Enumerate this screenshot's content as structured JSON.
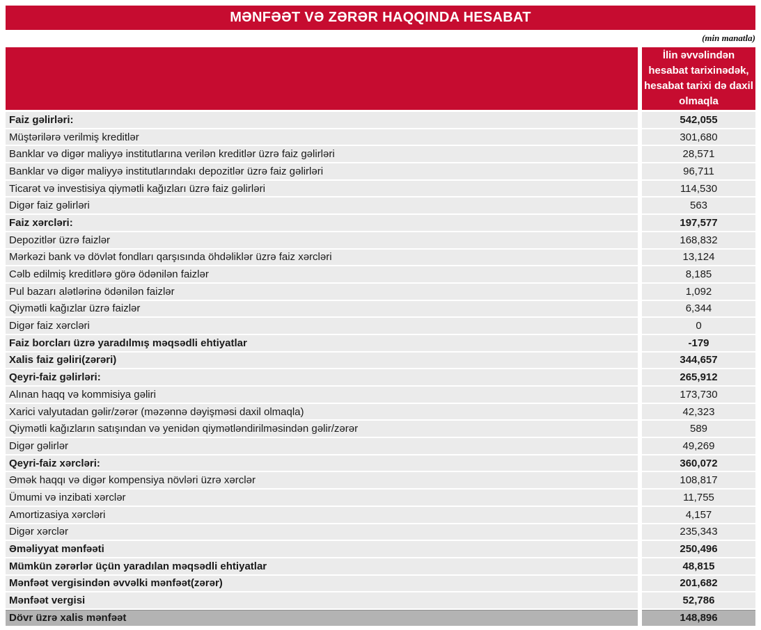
{
  "report": {
    "title": "MƏNFƏƏT VƏ ZƏRƏR HAQQINDA HESABAT",
    "unit_note": "(min manatla)",
    "value_column_header": "İlin əvvəlindən hesabat tarixinədək, hesabat tarixi də daxil olmaqla",
    "colors": {
      "accent_red": "#C60C30",
      "row_bg": "#EBEBEB",
      "total_row_bg": "#B3B3B3"
    },
    "rows": [
      {
        "label": "Faiz gəlirləri:",
        "value": "542,055",
        "style": "section"
      },
      {
        "label": "Müştərilərə verilmiş kreditlər",
        "value": "301,680",
        "style": "item"
      },
      {
        "label": "Banklar və digər maliyyə institutlarına verilən kreditlər üzrə faiz gəlirləri",
        "value": "28,571",
        "style": "item"
      },
      {
        "label": "Banklar və digər maliyyə institutlarındakı depozitlər üzrə faiz gəlirləri",
        "value": "96,711",
        "style": "item"
      },
      {
        "label": "Ticarət və investisiya qiymətli kağızları üzrə faiz gəlirləri",
        "value": "114,530",
        "style": "item"
      },
      {
        "label": "Digər faiz gəlirləri",
        "value": "563",
        "style": "item"
      },
      {
        "label": "Faiz xərcləri:",
        "value": "197,577",
        "style": "section"
      },
      {
        "label": "Depozitlər üzrə faizlər",
        "value": "168,832",
        "style": "item"
      },
      {
        "label": "Mərkəzi bank və dövlət fondları qarşısında öhdəliklər üzrə faiz xərcləri",
        "value": "13,124",
        "style": "item"
      },
      {
        "label": "Cəlb edilmiş kreditlərə görə ödənilən faizlər",
        "value": "8,185",
        "style": "item"
      },
      {
        "label": "Pul bazarı alətlərinə ödənilən faizlər",
        "value": "1,092",
        "style": "item"
      },
      {
        "label": "Qiymətli kağızlar üzrə faizlər",
        "value": "6,344",
        "style": "item"
      },
      {
        "label": "Digər faiz xərcləri",
        "value": "0",
        "style": "item"
      },
      {
        "label": "Faiz borcları üzrə yaradılmış məqsədli ehtiyatlar",
        "value": "-179",
        "style": "section"
      },
      {
        "label": "Xalis faiz gəliri(zərəri)",
        "value": "344,657",
        "style": "section"
      },
      {
        "label": "Qeyri-faiz gəlirləri:",
        "value": "265,912",
        "style": "section"
      },
      {
        "label": "Alınan haqq və kommisiya gəliri",
        "value": "173,730",
        "style": "item"
      },
      {
        "label": "Xarici valyutadan gəlir/zərər (məzənnə dəyişməsi daxil olmaqla)",
        "value": "42,323",
        "style": "item"
      },
      {
        "label": "Qiymətli kağızların satışından və yenidən qiymətləndirilməsindən gəlir/zərər",
        "value": "589",
        "style": "item"
      },
      {
        "label": "Digər gəlirlər",
        "value": "49,269",
        "style": "item"
      },
      {
        "label": "Qeyri-faiz xərcləri:",
        "value": "360,072",
        "style": "section"
      },
      {
        "label": "Əmək haqqı və digər kompensiya növləri üzrə xərclər",
        "value": "108,817",
        "style": "item"
      },
      {
        "label": "Ümumi və inzibati xərclər",
        "value": "11,755",
        "style": "item"
      },
      {
        "label": "Amortizasiya xərcləri",
        "value": "4,157",
        "style": "item"
      },
      {
        "label": "Digər xərclər",
        "value": "235,343",
        "style": "item"
      },
      {
        "label": "Əməliyyat mənfəəti",
        "value": "250,496",
        "style": "section"
      },
      {
        "label": "Mümkün zərərlər üçün yaradılan məqsədli ehtiyatlar",
        "value": "48,815",
        "style": "section"
      },
      {
        "label": "Mənfəət vergisindən əvvəlki mənfəət(zərər)",
        "value": "201,682",
        "style": "section"
      },
      {
        "label": "Mənfəət vergisi",
        "value": "52,786",
        "style": "section"
      },
      {
        "label": "Dövr üzrə xalis mənfəət",
        "value": "148,896",
        "style": "total"
      }
    ]
  }
}
